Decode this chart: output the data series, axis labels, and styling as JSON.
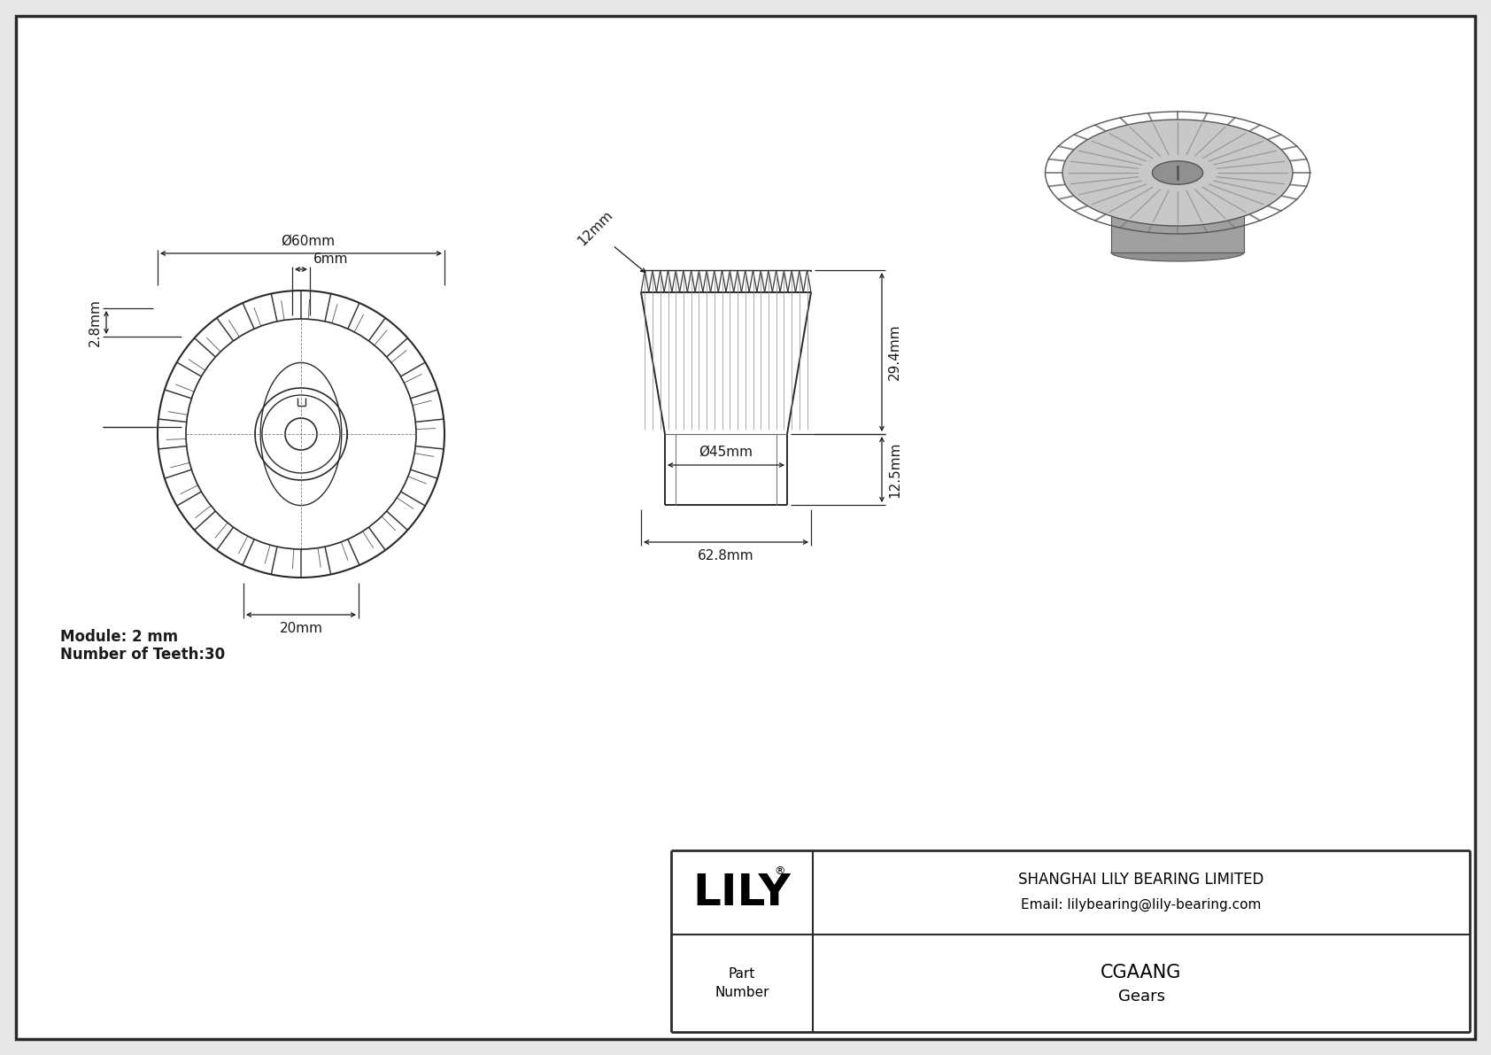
{
  "bg_color": "#e8e8e8",
  "border_color": "#2a2a2a",
  "line_color": "#2a2a2a",
  "dim_color": "#1a1a1a",
  "title": "CGAANG",
  "subtitle": "Gears",
  "company": "SHANGHAI LILY BEARING LIMITED",
  "email": "Email: lilybearing@lily-bearing.com",
  "module_text": "Module: 2 mm",
  "teeth_text": "Number of Teeth:30",
  "dim_phi60": "Ø60mm",
  "dim_6": "6mm",
  "dim_2_8": "2.8mm",
  "dim_20": "20mm",
  "dim_12": "12mm",
  "dim_29_4": "29.4mm",
  "dim_phi45": "Ø45mm",
  "dim_62_8": "62.8mm",
  "dim_12_5": "12.5mm",
  "n_teeth": 30,
  "font_size_dim": 11,
  "font_size_company": 12,
  "font_size_lily": 36
}
